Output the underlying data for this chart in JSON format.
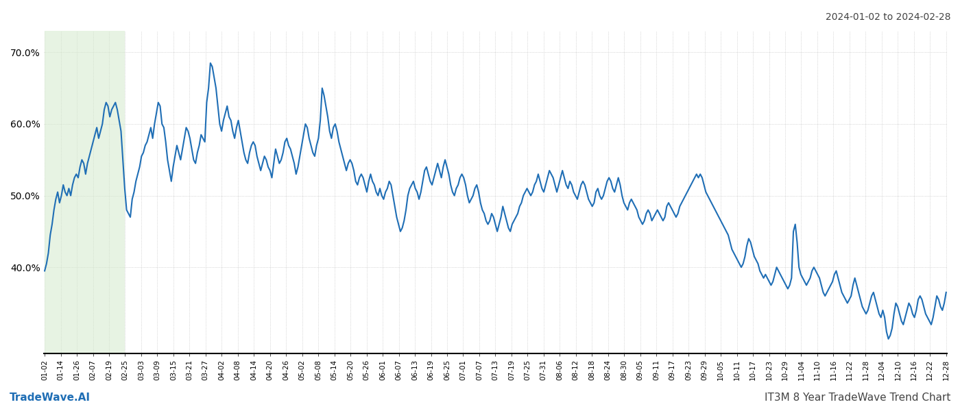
{
  "title_top_right": "2024-01-02 to 2024-02-28",
  "title_bottom_right": "IT3M 8 Year TradeWave Trend Chart",
  "title_bottom_left": "TradeWave.AI",
  "line_color": "#1f6eb5",
  "line_width": 1.5,
  "highlight_color": "#d4eacc",
  "highlight_alpha": 0.55,
  "background_color": "#ffffff",
  "grid_color": "#bbbbbb",
  "grid_style": ":",
  "ylim": [
    28,
    73
  ],
  "yticks": [
    40.0,
    50.0,
    60.0,
    70.0
  ],
  "xlabel_fontsize": 7.5,
  "x_labels": [
    "01-02",
    "01-14",
    "01-26",
    "02-07",
    "02-19",
    "02-25",
    "03-03",
    "03-09",
    "03-15",
    "03-21",
    "03-27",
    "04-02",
    "04-08",
    "04-14",
    "04-20",
    "04-26",
    "05-02",
    "05-08",
    "05-14",
    "05-20",
    "05-26",
    "06-01",
    "06-07",
    "06-13",
    "06-19",
    "06-25",
    "07-01",
    "07-07",
    "07-13",
    "07-19",
    "07-25",
    "07-31",
    "08-06",
    "08-12",
    "08-18",
    "08-24",
    "08-30",
    "09-05",
    "09-11",
    "09-17",
    "09-23",
    "09-29",
    "10-05",
    "10-11",
    "10-17",
    "10-23",
    "10-29",
    "11-04",
    "11-10",
    "11-16",
    "11-22",
    "11-28",
    "12-04",
    "12-10",
    "12-16",
    "12-22",
    "12-28"
  ],
  "highlight_start_label": "01-02",
  "highlight_end_label": "02-25",
  "values": [
    39.5,
    40.5,
    42.0,
    44.5,
    46.0,
    48.0,
    49.5,
    50.5,
    49.0,
    50.0,
    51.5,
    50.5,
    50.0,
    51.0,
    50.0,
    51.5,
    52.5,
    53.0,
    52.5,
    54.0,
    55.0,
    54.5,
    53.0,
    54.5,
    55.5,
    56.5,
    57.5,
    58.5,
    59.5,
    58.0,
    59.0,
    60.0,
    62.0,
    63.0,
    62.5,
    61.0,
    62.0,
    62.5,
    63.0,
    62.0,
    60.5,
    59.0,
    55.0,
    51.0,
    48.0,
    47.5,
    47.0,
    49.5,
    50.5,
    52.0,
    53.0,
    54.0,
    55.5,
    56.0,
    57.0,
    57.5,
    58.5,
    59.5,
    58.0,
    60.0,
    61.5,
    63.0,
    62.5,
    60.0,
    59.5,
    57.5,
    55.0,
    53.5,
    52.0,
    54.0,
    55.5,
    57.0,
    56.0,
    55.0,
    56.5,
    58.0,
    59.5,
    59.0,
    58.0,
    56.5,
    55.0,
    54.5,
    56.0,
    57.0,
    58.5,
    58.0,
    57.5,
    63.0,
    65.0,
    68.5,
    68.0,
    66.5,
    65.0,
    62.5,
    60.0,
    59.0,
    60.5,
    61.5,
    62.5,
    61.0,
    60.5,
    59.0,
    58.0,
    59.5,
    60.5,
    59.0,
    57.5,
    56.0,
    55.0,
    54.5,
    56.0,
    57.0,
    57.5,
    57.0,
    55.5,
    54.5,
    53.5,
    54.5,
    55.5,
    55.0,
    54.0,
    53.5,
    52.5,
    54.5,
    56.5,
    55.5,
    54.5,
    55.0,
    56.0,
    57.5,
    58.0,
    57.0,
    56.5,
    55.5,
    54.5,
    53.0,
    54.0,
    55.5,
    57.0,
    58.5,
    60.0,
    59.5,
    58.0,
    57.0,
    56.0,
    55.5,
    57.0,
    58.0,
    60.5,
    65.0,
    64.0,
    62.5,
    61.0,
    59.0,
    58.0,
    59.5,
    60.0,
    59.0,
    57.5,
    56.5,
    55.5,
    54.5,
    53.5,
    54.5,
    55.0,
    54.5,
    53.5,
    52.0,
    51.5,
    52.5,
    53.0,
    52.5,
    51.5,
    50.5,
    52.0,
    53.0,
    52.0,
    51.5,
    50.5,
    50.0,
    51.0,
    50.0,
    49.5,
    50.5,
    51.0,
    52.0,
    51.5,
    50.0,
    48.5,
    47.0,
    46.0,
    45.0,
    45.5,
    46.5,
    48.0,
    50.0,
    51.0,
    51.5,
    52.0,
    51.0,
    50.5,
    49.5,
    50.5,
    52.0,
    53.5,
    54.0,
    53.0,
    52.0,
    51.5,
    52.5,
    53.5,
    54.5,
    53.5,
    52.5,
    54.0,
    55.0,
    54.0,
    53.0,
    51.5,
    50.5,
    50.0,
    51.0,
    51.5,
    52.5,
    53.0,
    52.5,
    51.5,
    50.0,
    49.0,
    49.5,
    50.0,
    51.0,
    51.5,
    50.5,
    49.0,
    48.0,
    47.5,
    46.5,
    46.0,
    46.5,
    47.5,
    47.0,
    46.0,
    45.0,
    46.0,
    47.0,
    48.5,
    47.5,
    46.5,
    45.5,
    45.0,
    46.0,
    46.5,
    47.0,
    47.5,
    48.5,
    49.0,
    50.0,
    50.5,
    51.0,
    50.5,
    50.0,
    50.5,
    51.5,
    52.0,
    53.0,
    52.0,
    51.0,
    50.5,
    51.5,
    52.5,
    53.5,
    53.0,
    52.5,
    51.5,
    50.5,
    51.5,
    52.5,
    53.5,
    52.5,
    51.5,
    51.0,
    52.0,
    51.5,
    50.5,
    50.0,
    49.5,
    50.5,
    51.5,
    52.0,
    51.5,
    50.5,
    49.5,
    49.0,
    48.5,
    49.0,
    50.5,
    51.0,
    50.0,
    49.5,
    50.0,
    51.0,
    52.0,
    52.5,
    52.0,
    51.0,
    50.5,
    51.5,
    52.5,
    51.5,
    50.0,
    49.0,
    48.5,
    48.0,
    49.0,
    49.5,
    49.0,
    48.5,
    48.0,
    47.0,
    46.5,
    46.0,
    46.5,
    47.5,
    48.0,
    47.5,
    46.5,
    47.0,
    47.5,
    48.0,
    47.5,
    47.0,
    46.5,
    47.0,
    48.5,
    49.0,
    48.5,
    48.0,
    47.5,
    47.0,
    47.5,
    48.5,
    49.0,
    49.5,
    50.0,
    50.5,
    51.0,
    51.5,
    52.0,
    52.5,
    53.0,
    52.5,
    53.0,
    52.5,
    51.5,
    50.5,
    50.0,
    49.5,
    49.0,
    48.5,
    48.0,
    47.5,
    47.0,
    46.5,
    46.0,
    45.5,
    45.0,
    44.5,
    43.5,
    42.5,
    42.0,
    41.5,
    41.0,
    40.5,
    40.0,
    40.5,
    41.5,
    43.0,
    44.0,
    43.5,
    42.5,
    41.5,
    41.0,
    40.5,
    39.5,
    39.0,
    38.5,
    39.0,
    38.5,
    38.0,
    37.5,
    38.0,
    39.0,
    40.0,
    39.5,
    39.0,
    38.5,
    38.0,
    37.5,
    37.0,
    37.5,
    38.5,
    45.0,
    46.0,
    43.5,
    40.0,
    39.0,
    38.5,
    38.0,
    37.5,
    38.0,
    38.5,
    39.5,
    40.0,
    39.5,
    39.0,
    38.5,
    37.5,
    36.5,
    36.0,
    36.5,
    37.0,
    37.5,
    38.0,
    39.0,
    39.5,
    38.5,
    37.5,
    36.5,
    36.0,
    35.5,
    35.0,
    35.5,
    36.0,
    37.5,
    38.5,
    37.5,
    36.5,
    35.5,
    34.5,
    34.0,
    33.5,
    34.0,
    35.0,
    36.0,
    36.5,
    35.5,
    34.5,
    33.5,
    33.0,
    34.0,
    33.0,
    31.0,
    30.0,
    30.5,
    31.5,
    33.5,
    35.0,
    34.5,
    33.5,
    32.5,
    32.0,
    33.0,
    34.0,
    35.0,
    34.5,
    33.5,
    33.0,
    34.0,
    35.5,
    36.0,
    35.5,
    34.5,
    33.5,
    33.0,
    32.5,
    32.0,
    33.0,
    34.5,
    36.0,
    35.5,
    34.5,
    34.0,
    35.0,
    36.5
  ]
}
